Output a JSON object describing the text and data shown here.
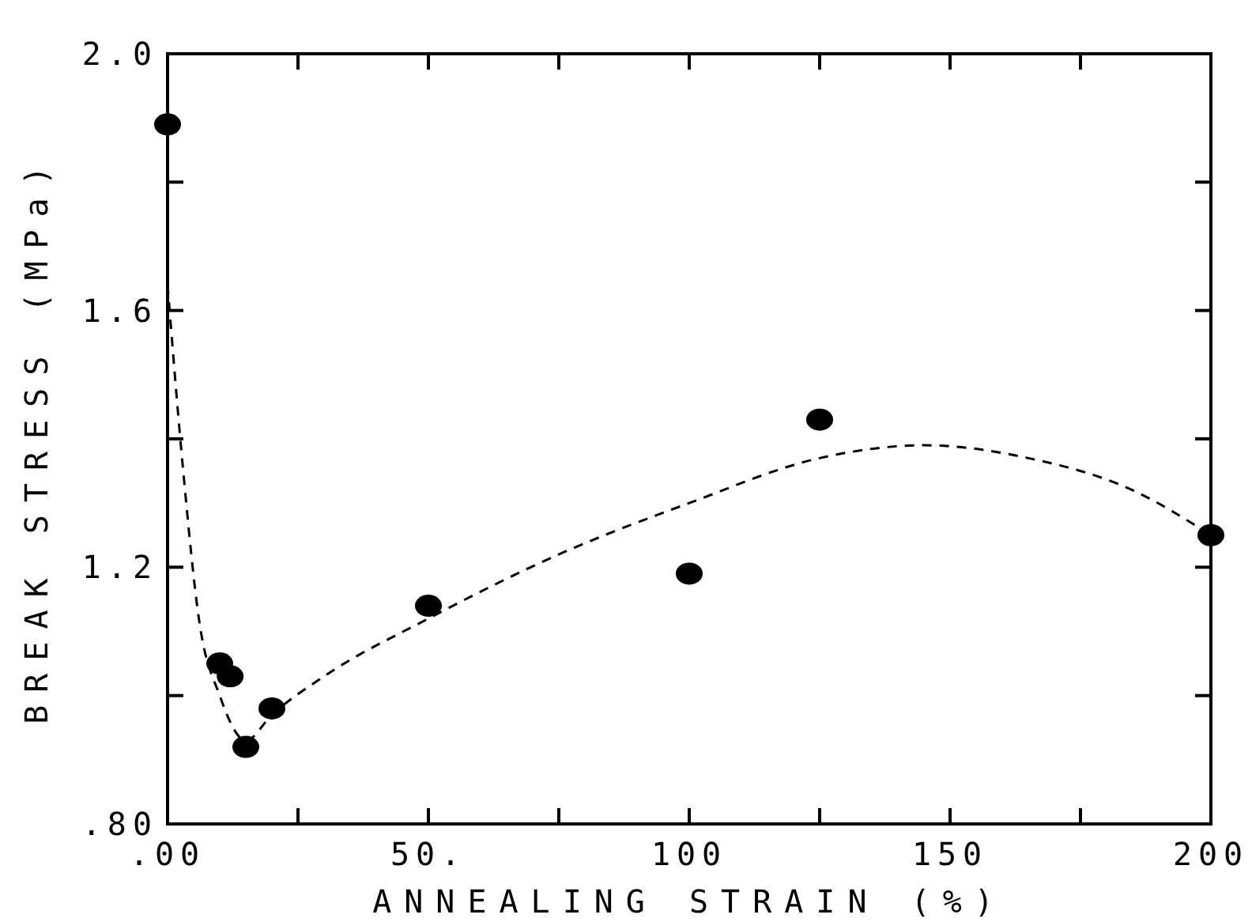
{
  "chart_data": {
    "type": "scatter",
    "xlabel": "ANNEALING STRAIN (%)",
    "ylabel": "BREAK STRESS (MPa)",
    "xlim": [
      0,
      200
    ],
    "ylim": [
      0.8,
      2.0
    ],
    "xticks": [
      {
        "value": 0,
        "label": ".00"
      },
      {
        "value": 25,
        "label": null
      },
      {
        "value": 50,
        "label": "50."
      },
      {
        "value": 75,
        "label": null
      },
      {
        "value": 100,
        "label": "100"
      },
      {
        "value": 125,
        "label": null
      },
      {
        "value": 150,
        "label": "150"
      },
      {
        "value": 175,
        "label": null
      },
      {
        "value": 200,
        "label": "200"
      }
    ],
    "yticks": [
      {
        "value": 0.8,
        "label": ".80"
      },
      {
        "value": 1.0,
        "label": null
      },
      {
        "value": 1.2,
        "label": "1.2"
      },
      {
        "value": 1.4,
        "label": null
      },
      {
        "value": 1.6,
        "label": "1.6"
      },
      {
        "value": 1.8,
        "label": null
      },
      {
        "value": 2.0,
        "label": "2.0"
      }
    ],
    "grid": false,
    "series": [
      {
        "color": "#000000",
        "marker": "circle",
        "x": [
          0,
          10,
          12,
          15,
          20,
          50,
          100,
          125,
          200
        ],
        "values": [
          1.89,
          1.05,
          1.03,
          0.92,
          0.98,
          1.14,
          1.19,
          1.43,
          1.25
        ]
      },
      {
        "type": "line",
        "color": "#000000",
        "line_style": "dashed",
        "x": [
          0,
          3,
          6,
          10,
          15,
          20,
          30,
          50,
          75,
          100,
          125,
          145,
          165,
          185,
          200
        ],
        "values": [
          1.64,
          1.35,
          1.12,
          1.0,
          0.93,
          0.97,
          1.03,
          1.12,
          1.22,
          1.3,
          1.37,
          1.39,
          1.37,
          1.32,
          1.25
        ]
      }
    ]
  }
}
